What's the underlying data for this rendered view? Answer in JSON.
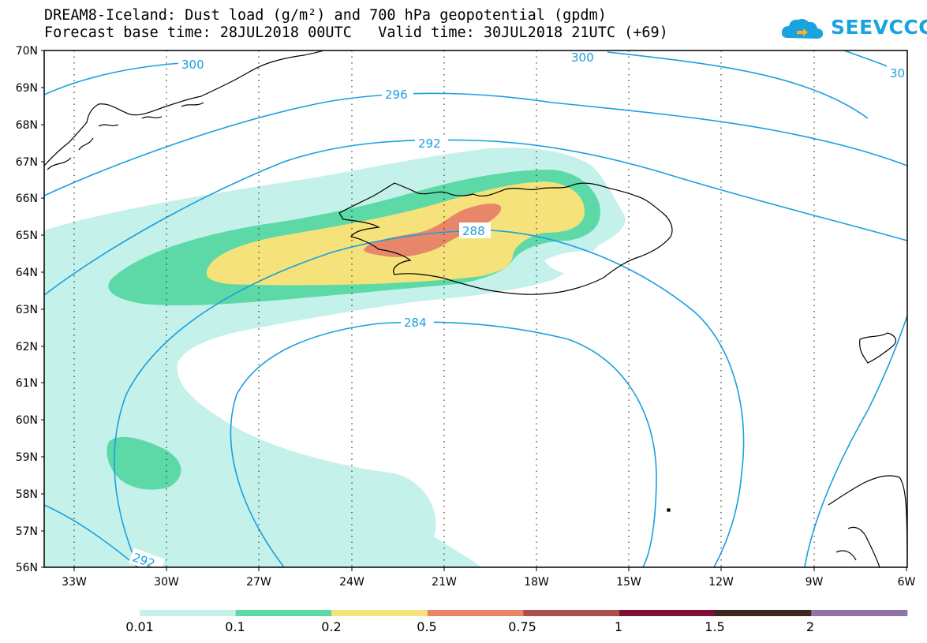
{
  "title_line1": "DREAM8-Iceland: Dust load (g/m²) and 700 hPa geopotential (gpdm)",
  "title_line2": "Forecast base time: 28JUL2018 00UTC   Valid time: 30JUL2018 21UTC (+69)",
  "logo_text": "SEEVCCC",
  "latitudes": [
    "70N",
    "69N",
    "68N",
    "67N",
    "66N",
    "65N",
    "64N",
    "63N",
    "62N",
    "61N",
    "60N",
    "59N",
    "58N",
    "57N",
    "56N"
  ],
  "longitudes": [
    "33W",
    "30W",
    "27W",
    "24W",
    "21W",
    "18W",
    "15W",
    "12W",
    "9W",
    "6W"
  ],
  "contour_labels": [
    "300",
    "300",
    "30",
    "296",
    "292",
    "288",
    "284",
    "292"
  ],
  "colorbar": {
    "labels": [
      "0.01",
      "0.1",
      "0.2",
      "0.5",
      "0.75",
      "1",
      "1.5",
      "2"
    ],
    "colors": [
      "#c4f1e9",
      "#5cd9a6",
      "#f5e27a",
      "#e8866a",
      "#a9504a",
      "#7d0f34",
      "#3a2a1e",
      "#8e74a8"
    ]
  },
  "contour_color": "#1a9fe0"
}
